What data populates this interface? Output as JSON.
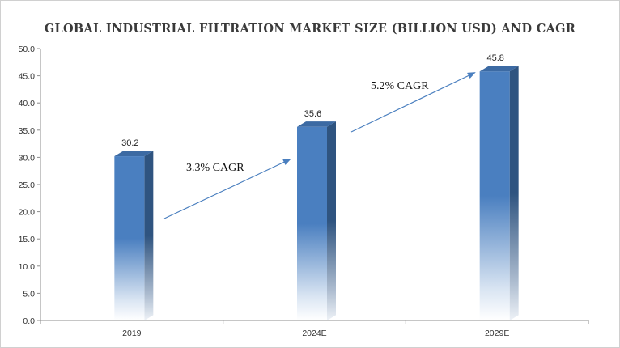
{
  "chart_data": {
    "type": "bar",
    "title": "GLOBAL INDUSTRIAL FILTRATION MARKET SIZE (BILLION USD) AND CAGR",
    "categories": [
      "2019",
      "2024E",
      "2029E"
    ],
    "values": [
      30.2,
      35.6,
      45.8
    ],
    "data_labels": [
      "30.2",
      "35.6",
      "45.8"
    ],
    "ylim": [
      0,
      50
    ],
    "yticks": [
      "0.0",
      "5.0",
      "10.0",
      "15.0",
      "20.0",
      "25.0",
      "30.0",
      "35.0",
      "40.0",
      "45.0",
      "50.0"
    ],
    "xlabel": "",
    "ylabel": "",
    "grid": false,
    "legend": "none",
    "annotations": [
      {
        "text": "3.3% CAGR",
        "from": "2019",
        "to": "2024E"
      },
      {
        "text": "5.2% CAGR",
        "from": "2024E",
        "to": "2029E"
      }
    ],
    "colors": {
      "bar_front": "#4a7fc0",
      "bar_side": "#2f5480",
      "bar_top": "#3c6aa3",
      "arrow": "#4a7fbf",
      "axis": "#8c8c8c"
    }
  }
}
